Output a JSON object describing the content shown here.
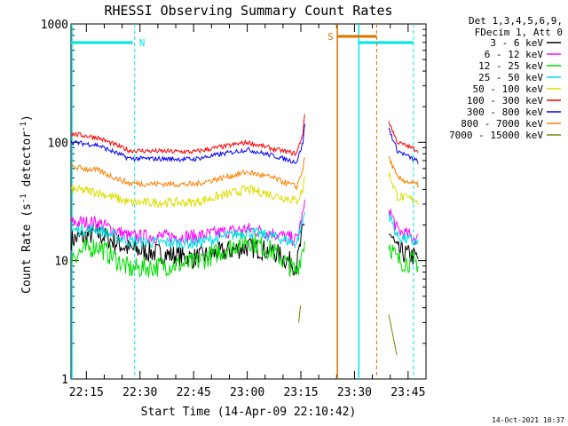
{
  "chart_data": {
    "type": "line",
    "title": "RHESSI Observing Summary Count Rates",
    "xlabel": "Start Time (14-Apr-09 22:10:42)",
    "ylabel": "Count Rate (s",
    "ylabel_sup": "-1",
    "ylabel_mid": " detector",
    "ylabel_end": ")",
    "yscale": "log",
    "ylim": [
      1,
      1000
    ],
    "y_tick_labels": [
      "1",
      "10",
      "100",
      "1000"
    ],
    "x_ticks": [
      "22:15",
      "22:30",
      "22:45",
      "23:00",
      "23:15",
      "23:30",
      "23:45"
    ],
    "legend_header": [
      "Det 1,3,4,5,6,9,",
      "FDecim 1, Att 0"
    ],
    "legend_placement": "right",
    "timestamp": "14-Oct-2021 10:37",
    "flags": [
      {
        "label": "N",
        "color": "#00e5e5"
      },
      {
        "label": "S",
        "color": "#e07000"
      }
    ],
    "series": [
      {
        "name": "3 - 6 keV",
        "color": "#000000",
        "values": [
          [
            22.18,
            15
          ],
          [
            22.3,
            17
          ],
          [
            22.45,
            12.5
          ],
          [
            22.75,
            10.5
          ],
          [
            23.0,
            13
          ],
          [
            23.12,
            12
          ],
          [
            23.23,
            9
          ],
          [
            23.26,
            18
          ],
          [
            23.27,
            20
          ],
          [
            23.66,
            18
          ],
          [
            23.7,
            12
          ],
          [
            23.8,
            10.5
          ]
        ]
      },
      {
        "name": "6 - 12 keV",
        "color": "#ff00ff",
        "values": [
          [
            22.18,
            21
          ],
          [
            22.3,
            21
          ],
          [
            22.45,
            16
          ],
          [
            22.75,
            16
          ],
          [
            23.0,
            18.5
          ],
          [
            23.12,
            17
          ],
          [
            23.23,
            15
          ],
          [
            23.26,
            25
          ],
          [
            23.27,
            30
          ],
          [
            23.66,
            28
          ],
          [
            23.7,
            18
          ],
          [
            23.8,
            15
          ]
        ]
      },
      {
        "name": "12 - 25 keV",
        "color": "#00dd00",
        "values": [
          [
            22.18,
            11
          ],
          [
            22.3,
            13.5
          ],
          [
            22.45,
            8.5
          ],
          [
            22.75,
            9.5
          ],
          [
            23.0,
            15
          ],
          [
            23.12,
            12
          ],
          [
            23.23,
            8
          ],
          [
            23.26,
            13
          ],
          [
            23.27,
            15
          ],
          [
            23.66,
            14
          ],
          [
            23.7,
            10
          ],
          [
            23.8,
            9.5
          ]
        ]
      },
      {
        "name": "25 - 50 keV",
        "color": "#00dddd",
        "values": [
          [
            22.18,
            18
          ],
          [
            22.3,
            18.5
          ],
          [
            22.45,
            14.5
          ],
          [
            22.75,
            14
          ],
          [
            23.0,
            17.5
          ],
          [
            23.12,
            16
          ],
          [
            23.23,
            14
          ],
          [
            23.26,
            22
          ],
          [
            23.27,
            27
          ],
          [
            23.66,
            25
          ],
          [
            23.7,
            16
          ],
          [
            23.8,
            14
          ]
        ]
      },
      {
        "name": "50 - 100 keV",
        "color": "#dddd00",
        "values": [
          [
            22.18,
            40
          ],
          [
            22.3,
            38
          ],
          [
            22.45,
            31
          ],
          [
            22.75,
            31
          ],
          [
            23.0,
            40
          ],
          [
            23.12,
            36
          ],
          [
            23.23,
            32
          ],
          [
            23.26,
            40
          ],
          [
            23.27,
            55
          ],
          [
            23.66,
            55
          ],
          [
            23.7,
            35
          ],
          [
            23.8,
            32
          ]
        ]
      },
      {
        "name": "100 - 300 keV",
        "color": "#ff0000",
        "values": [
          [
            22.18,
            118
          ],
          [
            22.3,
            110
          ],
          [
            22.45,
            85
          ],
          [
            22.75,
            83
          ],
          [
            23.0,
            100
          ],
          [
            23.12,
            88
          ],
          [
            23.23,
            80
          ],
          [
            23.26,
            120
          ],
          [
            23.27,
            190
          ],
          [
            23.66,
            150
          ],
          [
            23.7,
            100
          ],
          [
            23.8,
            85
          ]
        ]
      },
      {
        "name": "300 - 800 keV",
        "color": "#0000ff",
        "values": [
          [
            22.18,
            100
          ],
          [
            22.3,
            95
          ],
          [
            22.45,
            73
          ],
          [
            22.75,
            72
          ],
          [
            23.0,
            87
          ],
          [
            23.12,
            77
          ],
          [
            23.23,
            68
          ],
          [
            23.26,
            100
          ],
          [
            23.27,
            160
          ],
          [
            23.66,
            130
          ],
          [
            23.7,
            85
          ],
          [
            23.8,
            68
          ]
        ]
      },
      {
        "name": "800 - 7000 keV",
        "color": "#ff8000",
        "values": [
          [
            22.18,
            62
          ],
          [
            22.3,
            58
          ],
          [
            22.45,
            45
          ],
          [
            22.75,
            44
          ],
          [
            23.0,
            56
          ],
          [
            23.12,
            50
          ],
          [
            23.23,
            42
          ],
          [
            23.26,
            60
          ],
          [
            23.27,
            80
          ],
          [
            23.66,
            75
          ],
          [
            23.7,
            50
          ],
          [
            23.8,
            43
          ]
        ]
      },
      {
        "name": "7000 - 15000 keV",
        "color": "#808000",
        "values": [
          [
            23.24,
            3
          ],
          [
            23.25,
            4.5
          ],
          [
            23.66,
            3.5
          ],
          [
            23.7,
            1.5
          ]
        ]
      }
    ]
  }
}
